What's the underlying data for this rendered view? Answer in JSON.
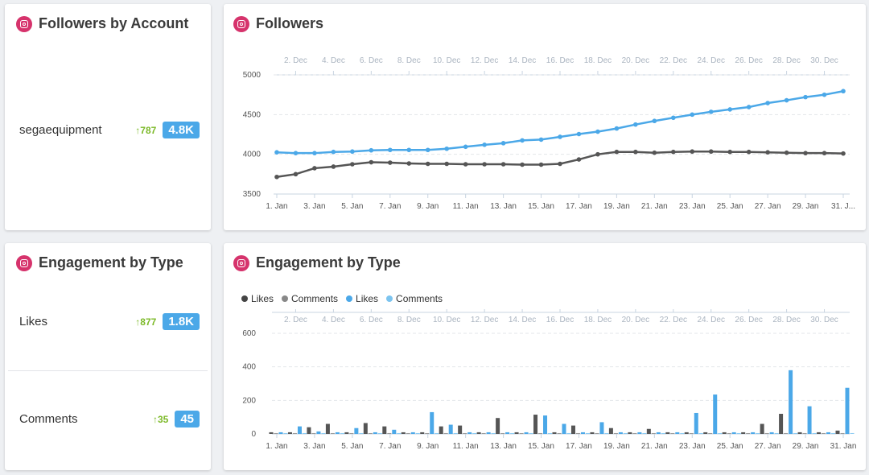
{
  "followers_by_account": {
    "title": "Followers by Account",
    "rows": [
      {
        "label": "segaequipment",
        "delta": "↑787",
        "value": "4.8K"
      }
    ]
  },
  "followers_chart": {
    "title": "Followers",
    "chart_data": {
      "type": "line",
      "x_bottom_labels": [
        "1. Jan",
        "3. Jan",
        "5. Jan",
        "7. Jan",
        "9. Jan",
        "11. Jan",
        "13. Jan",
        "15. Jan",
        "17. Jan",
        "19. Jan",
        "21. Jan",
        "23. Jan",
        "25. Jan",
        "27. Jan",
        "29. Jan",
        "31. J..."
      ],
      "x_top_labels": [
        "2. Dec",
        "4. Dec",
        "6. Dec",
        "8. Dec",
        "10. Dec",
        "12. Dec",
        "14. Dec",
        "16. Dec",
        "18. Dec",
        "20. Dec",
        "22. Dec",
        "24. Dec",
        "26. Dec",
        "28. Dec",
        "30. Dec"
      ],
      "y_ticks": [
        "5000",
        "4500",
        "4000",
        "3500"
      ],
      "ylim": [
        3500,
        5000
      ],
      "series": [
        {
          "color": "#4ba8e8",
          "values": [
            4025,
            4015,
            4015,
            4030,
            4035,
            4050,
            4055,
            4055,
            4055,
            4070,
            4095,
            4120,
            4140,
            4175,
            4185,
            4220,
            4255,
            4285,
            4325,
            4375,
            4420,
            4460,
            4500,
            4535,
            4565,
            4595,
            4645,
            4680,
            4720,
            4750,
            4795
          ]
        },
        {
          "color": "#555555",
          "values": [
            3715,
            3750,
            3825,
            3845,
            3875,
            3900,
            3895,
            3885,
            3880,
            3880,
            3875,
            3875,
            3875,
            3870,
            3870,
            3880,
            3935,
            4000,
            4030,
            4030,
            4020,
            4030,
            4035,
            4035,
            4030,
            4030,
            4025,
            4020,
            4015,
            4015,
            4010
          ]
        }
      ]
    }
  },
  "engagement_by_type_stats": {
    "title": "Engagement by Type",
    "rows": [
      {
        "label": "Likes",
        "delta": "↑877",
        "value": "1.8K"
      },
      {
        "label": "Comments",
        "delta": "↑35",
        "value": "45"
      }
    ]
  },
  "engagement_chart": {
    "title": "Engagement by Type",
    "legend": [
      {
        "label": "Likes",
        "color": "#444444"
      },
      {
        "label": "Comments",
        "color": "#888888"
      },
      {
        "label": "Likes",
        "color": "#4ba8e8"
      },
      {
        "label": "Comments",
        "color": "#7cc4ef"
      }
    ],
    "chart_data": {
      "type": "bar",
      "x_bottom_labels": [
        "1. Jan",
        "3. Jan",
        "5. Jan",
        "7. Jan",
        "9. Jan",
        "11. Jan",
        "13. Jan",
        "15. Jan",
        "17. Jan",
        "19. Jan",
        "21. Jan",
        "23. Jan",
        "25. Jan",
        "27. Jan",
        "29. Jan",
        "31. Jan"
      ],
      "x_top_labels": [
        "2. Dec",
        "4. Dec",
        "6. Dec",
        "8. Dec",
        "10. Dec",
        "12. Dec",
        "14. Dec",
        "16. Dec",
        "18. Dec",
        "20. Dec",
        "22. Dec",
        "24. Dec",
        "26. Dec",
        "28. Dec",
        "30. Dec"
      ],
      "y_ticks": [
        "600",
        "400",
        "200",
        "0"
      ],
      "ylim": [
        0,
        600
      ],
      "series": [
        {
          "name": "Likes",
          "color": "#555555",
          "values": [
            10,
            10,
            40,
            60,
            10,
            65,
            45,
            10,
            10,
            45,
            50,
            10,
            95,
            10,
            115,
            10,
            50,
            10,
            35,
            10,
            30,
            10,
            10,
            10,
            10,
            10,
            60,
            120,
            10,
            10,
            20
          ]
        },
        {
          "name": "Comments",
          "color": "#999999",
          "values": [
            5,
            5,
            5,
            5,
            5,
            5,
            5,
            5,
            5,
            5,
            5,
            5,
            5,
            5,
            5,
            5,
            5,
            5,
            5,
            5,
            5,
            5,
            5,
            5,
            5,
            5,
            5,
            5,
            5,
            5,
            5
          ]
        },
        {
          "name": "Likes",
          "color": "#4ba8e8",
          "values": [
            10,
            45,
            15,
            10,
            35,
            10,
            25,
            10,
            130,
            55,
            10,
            10,
            10,
            10,
            110,
            60,
            10,
            70,
            10,
            10,
            10,
            10,
            125,
            235,
            10,
            10,
            10,
            380,
            165,
            10,
            275
          ]
        },
        {
          "name": "Comments",
          "color": "#8ccbf2",
          "values": [
            5,
            5,
            5,
            5,
            5,
            5,
            5,
            5,
            5,
            5,
            5,
            5,
            5,
            5,
            5,
            5,
            5,
            5,
            5,
            5,
            5,
            5,
            5,
            5,
            5,
            5,
            5,
            5,
            5,
            5,
            5
          ]
        }
      ]
    }
  }
}
